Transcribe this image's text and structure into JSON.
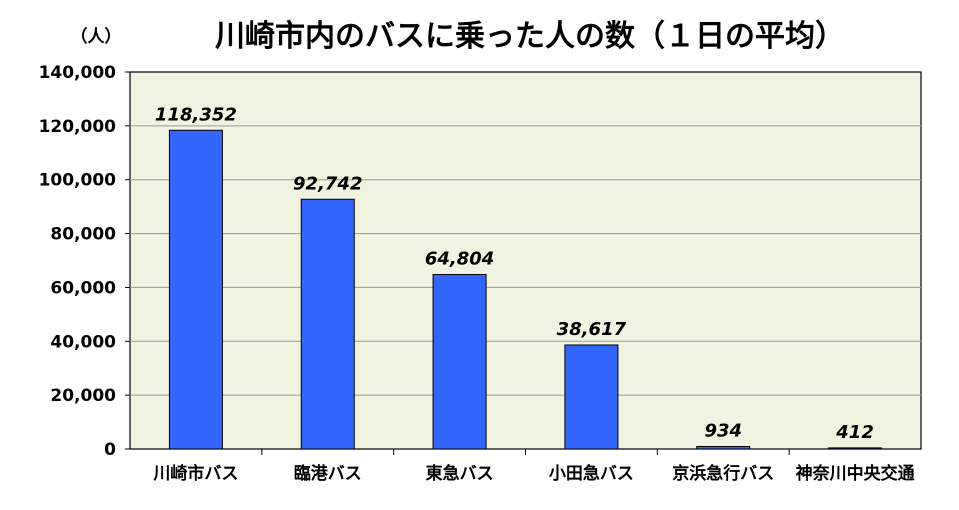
{
  "chart_data": {
    "type": "bar",
    "title": "川崎市内のバスに乗った人の数（１日の平均）",
    "unit_label": "（人）",
    "categories": [
      "川崎市バス",
      "臨港バス",
      "東急バス",
      "小田急バス",
      "京浜急行バス",
      "神奈川中央交通"
    ],
    "values": [
      118352,
      92742,
      64804,
      38617,
      934,
      412
    ],
    "data_labels": [
      "118,352",
      "92,742",
      "64,804",
      "38,617",
      "934",
      "412"
    ],
    "ylim": [
      0,
      140000
    ],
    "yticks": [
      0,
      20000,
      40000,
      60000,
      80000,
      100000,
      120000,
      140000
    ],
    "ytick_labels": [
      "0",
      "20,000",
      "40,000",
      "60,000",
      "80,000",
      "100,000",
      "120,000",
      "140,000"
    ],
    "grid": true,
    "colors": {
      "bar": "#3366ff",
      "plot_bg": "#eff3e0",
      "grid": "#9a9a9a"
    }
  }
}
